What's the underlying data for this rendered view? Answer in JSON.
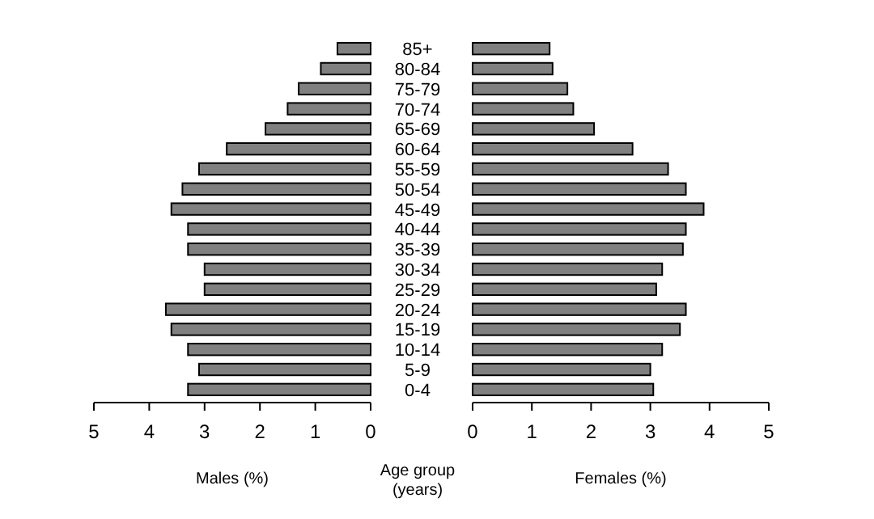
{
  "chart_data": [
    {
      "type": "bar",
      "orientation": "horizontal",
      "xlabel": "Males (%)",
      "categories": [
        "85+",
        "80-84",
        "75-79",
        "70-74",
        "65-69",
        "60-64",
        "55-59",
        "50-54",
        "45-49",
        "40-44",
        "35-39",
        "30-34",
        "25-29",
        "20-24",
        "15-19",
        "10-14",
        "5-9",
        "0-4"
      ],
      "values": [
        0.6,
        0.9,
        1.3,
        1.5,
        1.9,
        2.6,
        3.1,
        3.4,
        3.6,
        3.3,
        3.3,
        3.0,
        3.0,
        3.7,
        3.6,
        3.3,
        3.1,
        3.3
      ],
      "color": "#808080",
      "xlim": [
        5,
        0
      ],
      "xticks": [
        5,
        4,
        3,
        2,
        1,
        0
      ],
      "tick_labels": "x"
    },
    {
      "type": "bar",
      "orientation": "horizontal",
      "xlabel": "Females (%)",
      "ylabel": "Age group\n(years)",
      "categories": [
        "85+",
        "80-84",
        "75-79",
        "70-74",
        "65-69",
        "60-64",
        "55-59",
        "50-54",
        "45-49",
        "40-44",
        "35-39",
        "30-34",
        "25-29",
        "20-24",
        "15-19",
        "10-14",
        "5-9",
        "0-4"
      ],
      "values": [
        1.3,
        1.35,
        1.6,
        1.7,
        2.05,
        2.7,
        3.3,
        3.6,
        3.9,
        3.6,
        3.55,
        3.2,
        3.1,
        3.6,
        3.5,
        3.2,
        3.0,
        3.05
      ],
      "color": "#808080",
      "xlim": [
        0,
        5
      ],
      "xticks": [
        0,
        1,
        2,
        3,
        4,
        5
      ]
    }
  ]
}
